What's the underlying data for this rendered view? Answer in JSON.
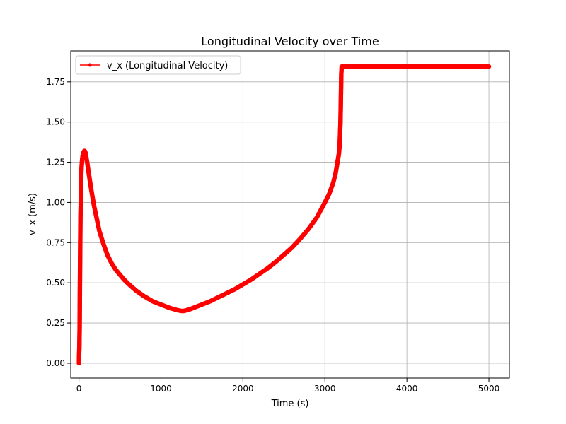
{
  "chart_data": {
    "type": "line",
    "title": "Longitudinal Velocity over Time",
    "xlabel": "Time (s)",
    "ylabel": "v_x (m/s)",
    "xlim": [
      -100,
      5250
    ],
    "ylim": [
      -0.0925,
      1.9425
    ],
    "xticks": [
      0,
      1000,
      2000,
      3000,
      4000,
      5000
    ],
    "yticks": [
      0.0,
      0.25,
      0.5,
      0.75,
      1.0,
      1.25,
      1.5,
      1.75
    ],
    "xtick_labels": [
      "0",
      "1000",
      "2000",
      "3000",
      "4000",
      "5000"
    ],
    "ytick_labels": [
      "0.00",
      "0.25",
      "0.50",
      "0.75",
      "1.00",
      "1.25",
      "1.50",
      "1.75"
    ],
    "grid": true,
    "legend_position": "top-left",
    "series": [
      {
        "name": "v_x (Longitudinal Velocity)",
        "color": "#ff0000",
        "marker": "circle",
        "x": [
          0,
          2,
          5,
          8,
          10,
          12,
          15,
          18,
          22,
          25,
          30,
          35,
          40,
          45,
          50,
          55,
          60,
          65,
          70,
          80,
          90,
          100,
          120,
          150,
          180,
          200,
          250,
          300,
          350,
          400,
          450,
          500,
          550,
          600,
          700,
          800,
          900,
          1000,
          1100,
          1200,
          1250,
          1280,
          1300,
          1350,
          1400,
          1500,
          1600,
          1700,
          1800,
          1900,
          2000,
          2100,
          2200,
          2300,
          2400,
          2500,
          2600,
          2700,
          2800,
          2900,
          3000,
          3050,
          3100,
          3130,
          3150,
          3170,
          3180,
          3190,
          3195,
          3200,
          3205,
          3210,
          3400,
          3600,
          3800,
          4000,
          4200,
          4400,
          4600,
          4800,
          5000
        ],
        "y": [
          0.0,
          0.05,
          0.1,
          0.2,
          0.35,
          0.5,
          0.7,
          0.9,
          1.0,
          1.1,
          1.2,
          1.24,
          1.27,
          1.29,
          1.3,
          1.31,
          1.315,
          1.32,
          1.32,
          1.31,
          1.28,
          1.25,
          1.18,
          1.08,
          0.99,
          0.94,
          0.82,
          0.74,
          0.67,
          0.62,
          0.58,
          0.55,
          0.52,
          0.495,
          0.45,
          0.415,
          0.385,
          0.365,
          0.345,
          0.33,
          0.325,
          0.325,
          0.328,
          0.335,
          0.345,
          0.365,
          0.385,
          0.41,
          0.435,
          0.46,
          0.49,
          0.52,
          0.555,
          0.59,
          0.63,
          0.675,
          0.72,
          0.775,
          0.835,
          0.905,
          1.0,
          1.05,
          1.12,
          1.18,
          1.24,
          1.3,
          1.36,
          1.5,
          1.65,
          1.8,
          1.845,
          1.845,
          1.845,
          1.845,
          1.845,
          1.845,
          1.845,
          1.845,
          1.845,
          1.845,
          1.845
        ]
      }
    ]
  }
}
